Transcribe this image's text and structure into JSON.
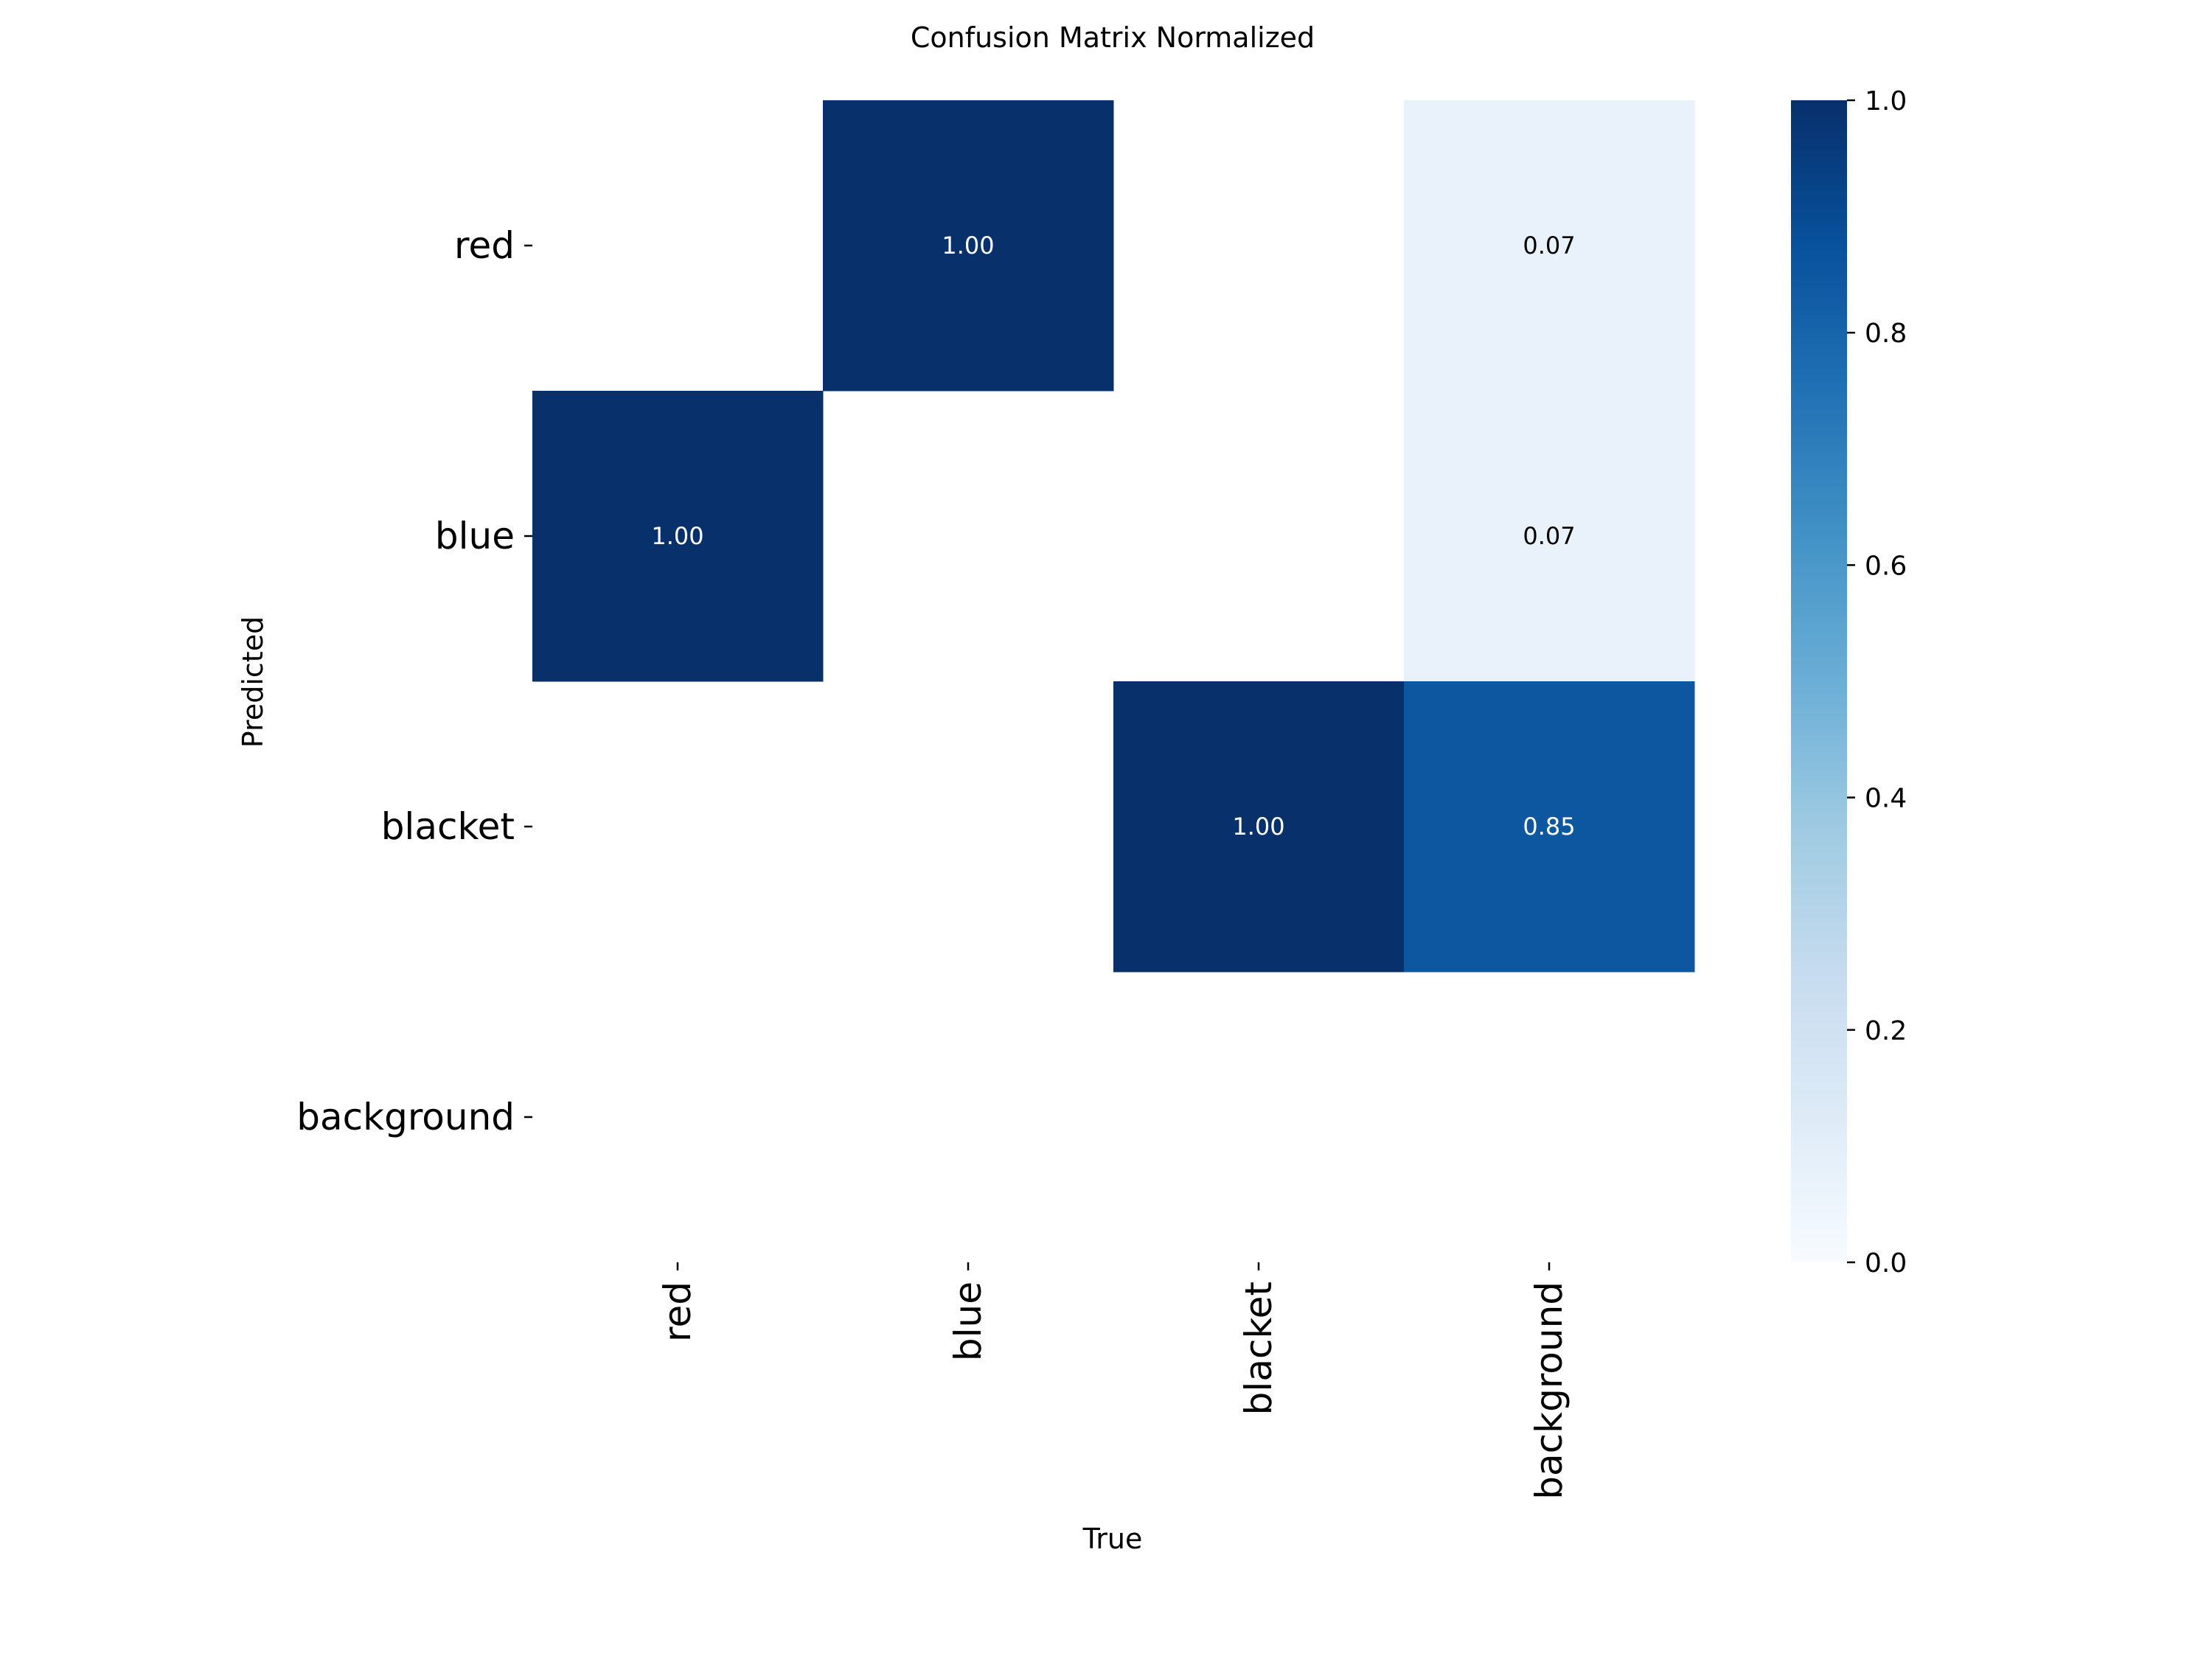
{
  "chart_data": {
    "type": "heatmap",
    "title": "Confusion Matrix Normalized",
    "xlabel": "True",
    "ylabel": "Predicted",
    "x_categories": [
      "red",
      "blue",
      "blacket",
      "background"
    ],
    "y_categories": [
      "red",
      "blue",
      "blacket",
      "background"
    ],
    "values": [
      [
        null,
        1.0,
        null,
        0.07
      ],
      [
        1.0,
        null,
        null,
        0.07
      ],
      [
        null,
        null,
        1.0,
        0.85
      ],
      [
        null,
        null,
        null,
        null
      ]
    ],
    "value_format": "0.00",
    "colormap": "Blues",
    "colorbar": {
      "range": [
        0.0,
        1.0
      ],
      "ticks": [
        0.0,
        0.2,
        0.4,
        0.6,
        0.8,
        1.0
      ],
      "tick_labels": [
        "0.0",
        "0.2",
        "0.4",
        "0.6",
        "0.8",
        "1.0"
      ]
    },
    "colors": {
      "low": "#f7fbff",
      "high": "#08306b",
      "text_on_dark": "#ffffff",
      "text_on_light": "#000000"
    }
  }
}
